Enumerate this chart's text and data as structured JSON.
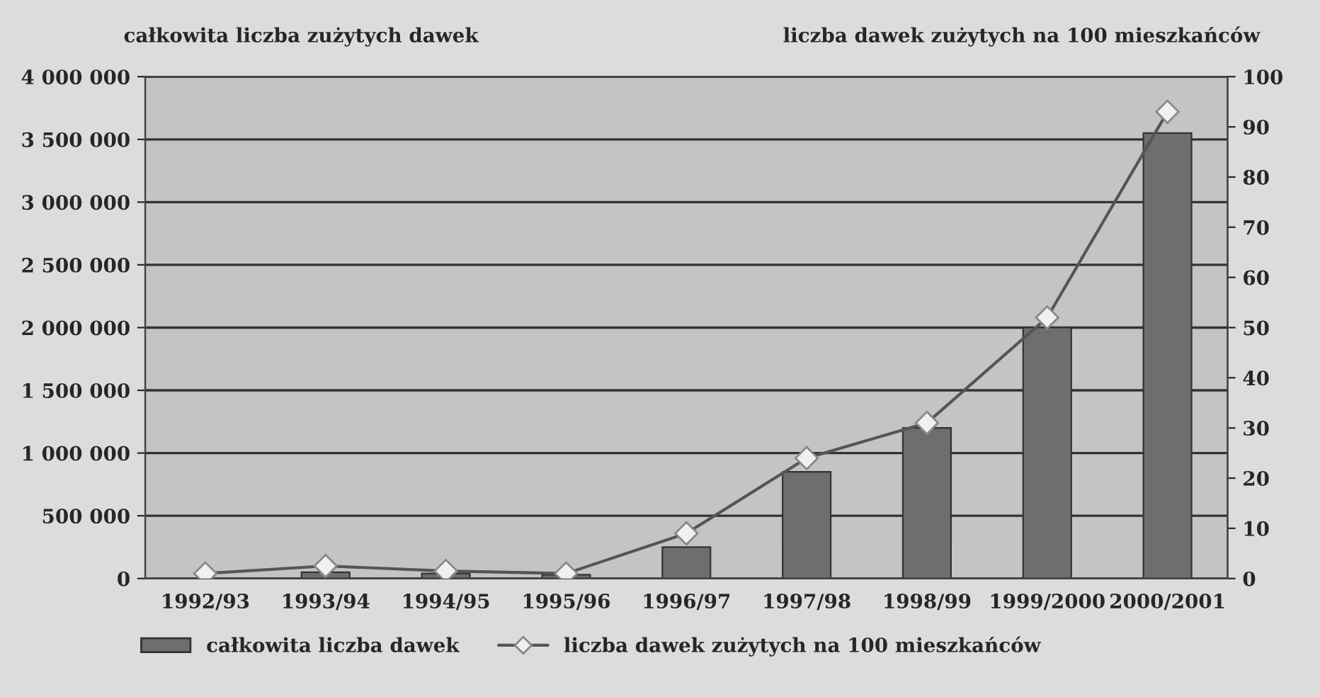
{
  "chart_data": {
    "type": "bar",
    "ylabel": "całkowita liczba zużytych dawek",
    "y2label": "liczba dawek zużytych na 100 mieszkańców",
    "categories": [
      "1992/93",
      "1993/94",
      "1994/95",
      "1995/96",
      "1996/97",
      "1997/98",
      "1998/99",
      "1999/2000",
      "2000/2001"
    ],
    "series": [
      {
        "name": "całkowita liczba dawek",
        "color": "#6e6e6e",
        "values": [
          null,
          50000,
          40000,
          30000,
          250000,
          850000,
          1200000,
          2000000,
          3550000
        ]
      },
      {
        "name": "liczba dawek zużytych na 100 mieszkańców",
        "type": "line",
        "axis": "y2",
        "color": "#555555",
        "marker": "diamond",
        "values": [
          1,
          2.5,
          1.5,
          1,
          9,
          24,
          31,
          52,
          93
        ]
      }
    ],
    "ylim": [
      0,
      4000000
    ],
    "yticks": [
      0,
      {
        "value": 500000,
        "label": "500 000"
      },
      {
        "value": 1000000,
        "label": "1 000 000"
      },
      {
        "value": 1500000,
        "label": "1 500 000"
      },
      {
        "value": 2000000,
        "label": "2 000 000"
      },
      {
        "value": 2500000,
        "label": "2 500 000"
      },
      {
        "value": 3000000,
        "label": "3 000 000"
      },
      {
        "value": 3500000,
        "label": "3 500 000"
      },
      {
        "value": 4000000,
        "label": "4 000 000"
      }
    ],
    "y2lim": [
      0,
      100
    ],
    "y2ticks": [
      0,
      10,
      20,
      30,
      40,
      50,
      60,
      70,
      80,
      90,
      100
    ],
    "grid": "y",
    "legend": "bottom"
  }
}
